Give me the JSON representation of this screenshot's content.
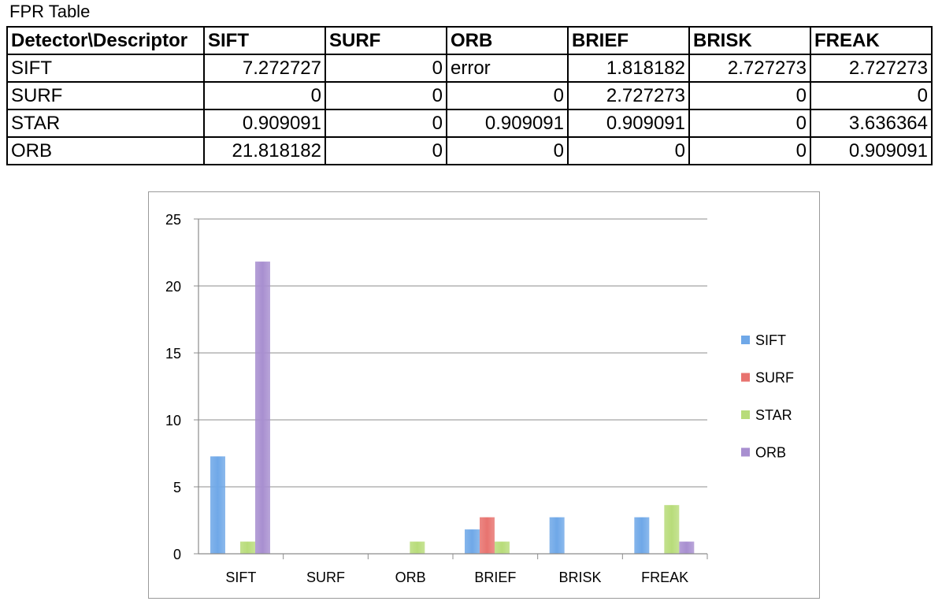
{
  "table": {
    "title": "FPR Table",
    "corner_header": "Detector\\Descriptor",
    "columns": [
      "SIFT",
      "SURF",
      "ORB",
      "BRIEF",
      "BRISK",
      "FREAK"
    ],
    "rows": [
      {
        "label": "SIFT",
        "cells": [
          "7.272727",
          "0",
          "error",
          "1.818182",
          "2.727273",
          "2.727273"
        ]
      },
      {
        "label": "SURF",
        "cells": [
          "0",
          "0",
          "0",
          "2.727273",
          "0",
          "0"
        ]
      },
      {
        "label": "STAR",
        "cells": [
          "0.909091",
          "0",
          "0.909091",
          "0.909091",
          "0",
          "3.636364"
        ]
      },
      {
        "label": "ORB",
        "cells": [
          "21.818182",
          "0",
          "0",
          "0",
          "0",
          "0.909091"
        ]
      }
    ]
  },
  "chart_data": {
    "type": "bar",
    "categories": [
      "SIFT",
      "SURF",
      "ORB",
      "BRIEF",
      "BRISK",
      "FREAK"
    ],
    "series": [
      {
        "name": "SIFT",
        "values": [
          7.272727,
          0,
          0,
          1.818182,
          2.727273,
          2.727273
        ],
        "color": "#6fa8e8"
      },
      {
        "name": "SURF",
        "values": [
          0,
          0,
          0,
          2.727273,
          0,
          0
        ],
        "color": "#e8736f"
      },
      {
        "name": "STAR",
        "values": [
          0.909091,
          0,
          0.909091,
          0.909091,
          0,
          3.636364
        ],
        "color": "#b8dc7a"
      },
      {
        "name": "ORB",
        "values": [
          21.818182,
          0,
          0,
          0,
          0,
          0.909091
        ],
        "color": "#a88fd0"
      }
    ],
    "yticks": [
      "0",
      "5",
      "10",
      "15",
      "20",
      "25"
    ],
    "ylim": [
      0,
      25
    ],
    "grid": true,
    "legend_position": "right"
  }
}
